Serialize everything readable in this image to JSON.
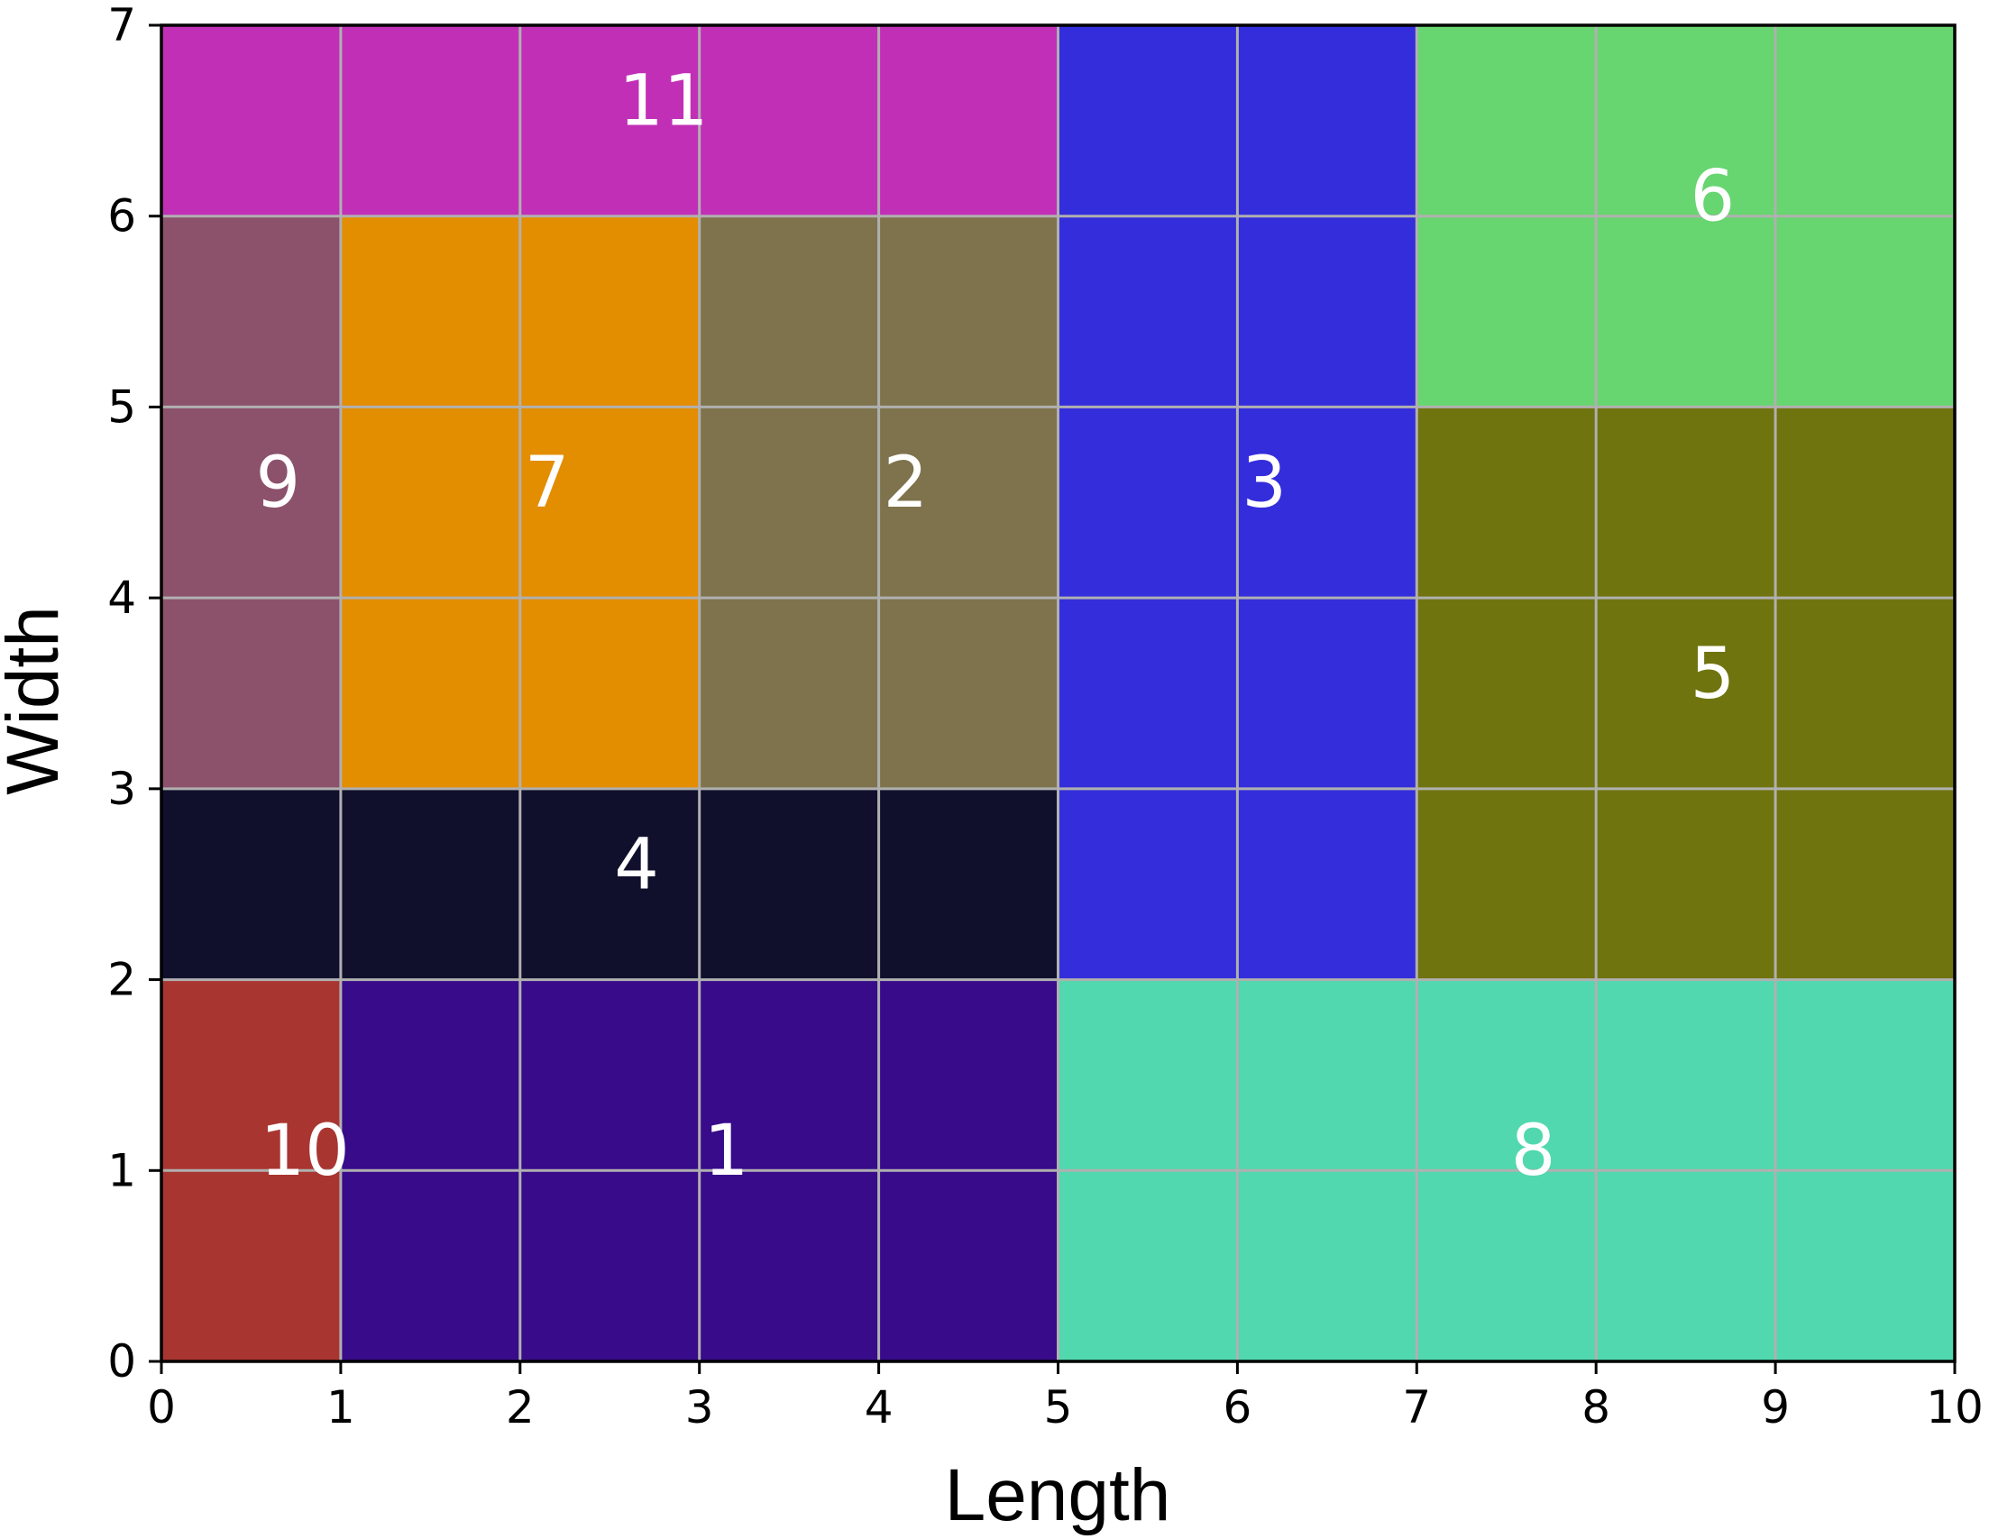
{
  "chart_data": {
    "type": "heatmap",
    "xlabel": "Length",
    "ylabel": "Width",
    "xlim": [
      0,
      10
    ],
    "ylim": [
      0,
      7
    ],
    "grid": true,
    "xticks": [
      "0",
      "1",
      "2",
      "3",
      "4",
      "5",
      "6",
      "7",
      "8",
      "9",
      "10"
    ],
    "yticks": [
      "0",
      "1",
      "2",
      "3",
      "4",
      "5",
      "6",
      "7"
    ],
    "rectangles": [
      {
        "label": "1",
        "x": 1,
        "y": 0,
        "length": 4,
        "width": 2,
        "color": "#380b8a",
        "label_x": 3.15,
        "label_y": 1.1
      },
      {
        "label": "2",
        "x": 3,
        "y": 3,
        "length": 2,
        "width": 3,
        "color": "#7e734d",
        "label_x": 4.15,
        "label_y": 4.6
      },
      {
        "label": "3",
        "x": 5,
        "y": 2,
        "length": 2,
        "width": 5,
        "color": "#342ddb",
        "label_x": 6.15,
        "label_y": 4.6
      },
      {
        "label": "4",
        "x": 0,
        "y": 2,
        "length": 5,
        "width": 1,
        "color": "#10102d",
        "label_x": 2.65,
        "label_y": 2.6
      },
      {
        "label": "5",
        "x": 7,
        "y": 2,
        "length": 3,
        "width": 3,
        "color": "#6f740f",
        "label_x": 8.65,
        "label_y": 3.6
      },
      {
        "label": "6",
        "x": 7,
        "y": 5,
        "length": 3,
        "width": 2,
        "color": "#67d570",
        "label_x": 8.65,
        "label_y": 6.1
      },
      {
        "label": "7",
        "x": 1,
        "y": 3,
        "length": 2,
        "width": 3,
        "color": "#e38d01",
        "label_x": 2.15,
        "label_y": 4.6
      },
      {
        "label": "8",
        "x": 5,
        "y": 0,
        "length": 5,
        "width": 2,
        "color": "#51d8ae",
        "label_x": 7.65,
        "label_y": 1.1
      },
      {
        "label": "9",
        "x": 0,
        "y": 3,
        "length": 1,
        "width": 3,
        "color": "#8c526c",
        "label_x": 0.65,
        "label_y": 4.6
      },
      {
        "label": "10",
        "x": 0,
        "y": 0,
        "length": 1,
        "width": 2,
        "color": "#a93531",
        "label_x": 0.8,
        "label_y": 1.1
      },
      {
        "label": "11",
        "x": 0,
        "y": 6,
        "length": 5,
        "width": 1,
        "color": "#c22fb7",
        "label_x": 2.8,
        "label_y": 6.6
      }
    ]
  }
}
